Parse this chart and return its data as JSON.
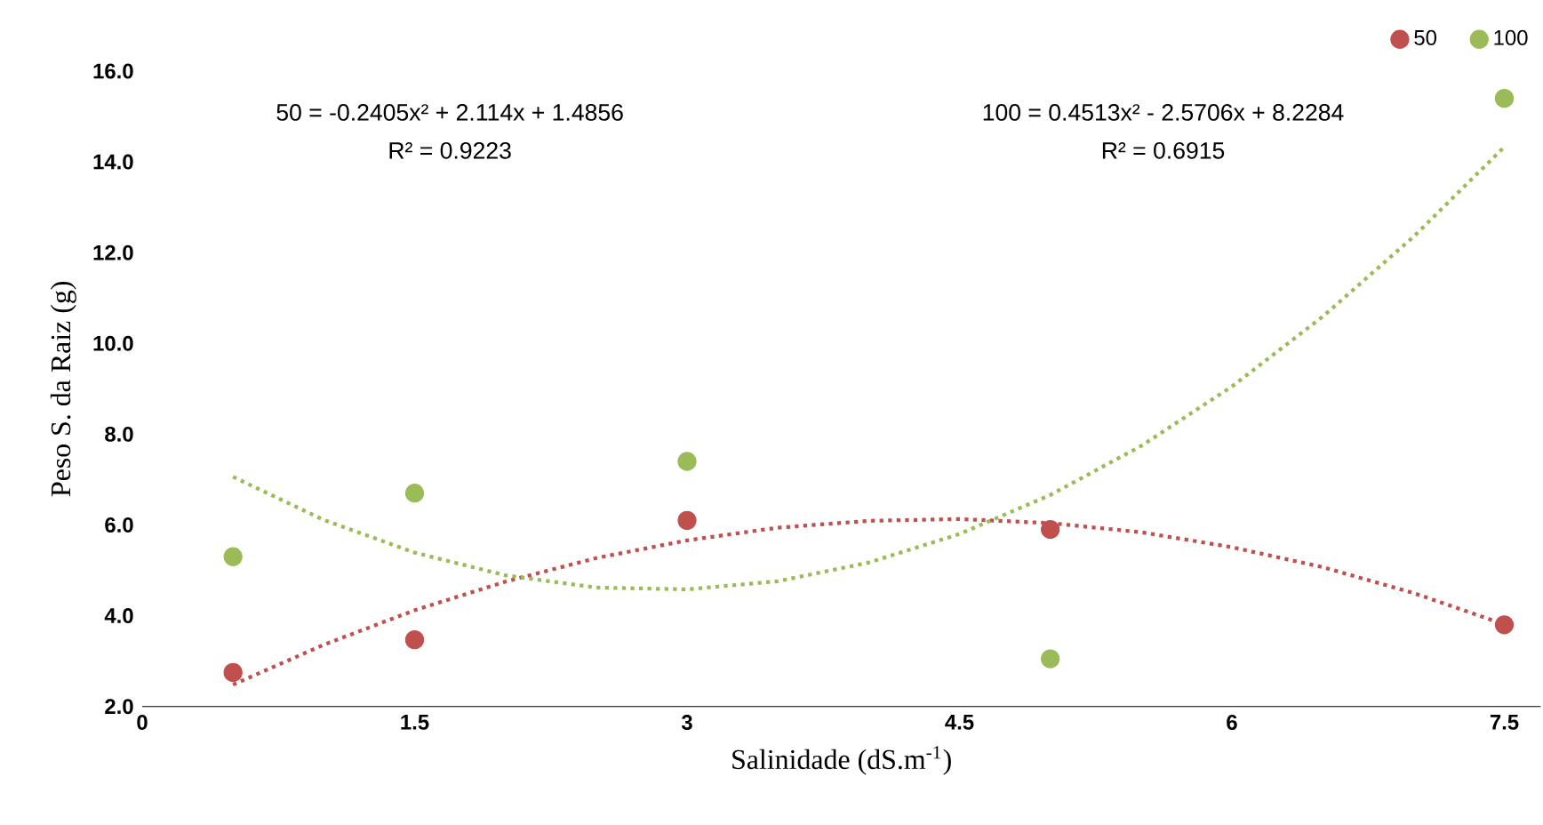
{
  "chart_data": {
    "type": "scatter",
    "xlabel": "Salinidade (dS.m$^{-1}$)",
    "ylabel": "Peso S. da Raiz (g)",
    "xlim": [
      0,
      7.7
    ],
    "xticks": [
      0,
      1.5,
      3,
      4.5,
      6,
      7.5
    ],
    "ylim": [
      2,
      16
    ],
    "yticks": [
      {
        "value": 2,
        "label": "2.0"
      },
      {
        "value": 4,
        "label": "4.0"
      },
      {
        "value": 6,
        "label": "6.0"
      },
      {
        "value": 8,
        "label": "8.0"
      },
      {
        "value": 10,
        "label": "10.0"
      },
      {
        "value": 12,
        "label": "12.0"
      },
      {
        "value": 14,
        "label": "14.0"
      },
      {
        "value": 16,
        "label": "16.0"
      }
    ],
    "marker": "circle",
    "legend": "top right",
    "grid": false,
    "series": [
      {
        "name": "50",
        "color": "#c0504d",
        "x": [
          0.5,
          1.5,
          3,
          5,
          7.5
        ],
        "values": [
          2.75,
          3.47,
          6.1,
          5.9,
          3.8
        ]
      },
      {
        "name": "100",
        "color": "#9bbb59",
        "x": [
          0.5,
          1.5,
          3,
          5,
          7.5
        ],
        "values": [
          5.3,
          6.7,
          7.4,
          3.05,
          15.4
        ]
      },
      {
        "type": "line",
        "line_style": "dotted",
        "marker": "none",
        "color": "#c0504d",
        "x": [
          0.5,
          1,
          1.5,
          2,
          2.5,
          3,
          3.5,
          4,
          4.5,
          5,
          5.5,
          6,
          6.5,
          7,
          7.5
        ],
        "values": [
          2.48,
          3.36,
          4.12,
          4.75,
          5.27,
          5.66,
          5.94,
          6.09,
          6.13,
          6.04,
          5.84,
          5.51,
          5.07,
          4.5,
          3.81
        ]
      },
      {
        "type": "line",
        "line_style": "dotted",
        "marker": "none",
        "color": "#9bbb59",
        "x": [
          0.5,
          1,
          1.5,
          2,
          2.5,
          3,
          3.5,
          4,
          4.5,
          5,
          5.5,
          6,
          6.5,
          7,
          7.5
        ],
        "values": [
          7.06,
          6.11,
          5.39,
          4.89,
          4.62,
          4.58,
          4.76,
          5.17,
          5.8,
          6.66,
          7.74,
          9.05,
          10.59,
          12.35,
          14.33
        ]
      }
    ],
    "annotations": [
      "50 = -0.2405x² + 2.114x + 1.4856",
      "R² = 0.9223",
      "100 = 0.4513x² - 2.5706x + 8.2284",
      "R² = 0.6915"
    ]
  }
}
